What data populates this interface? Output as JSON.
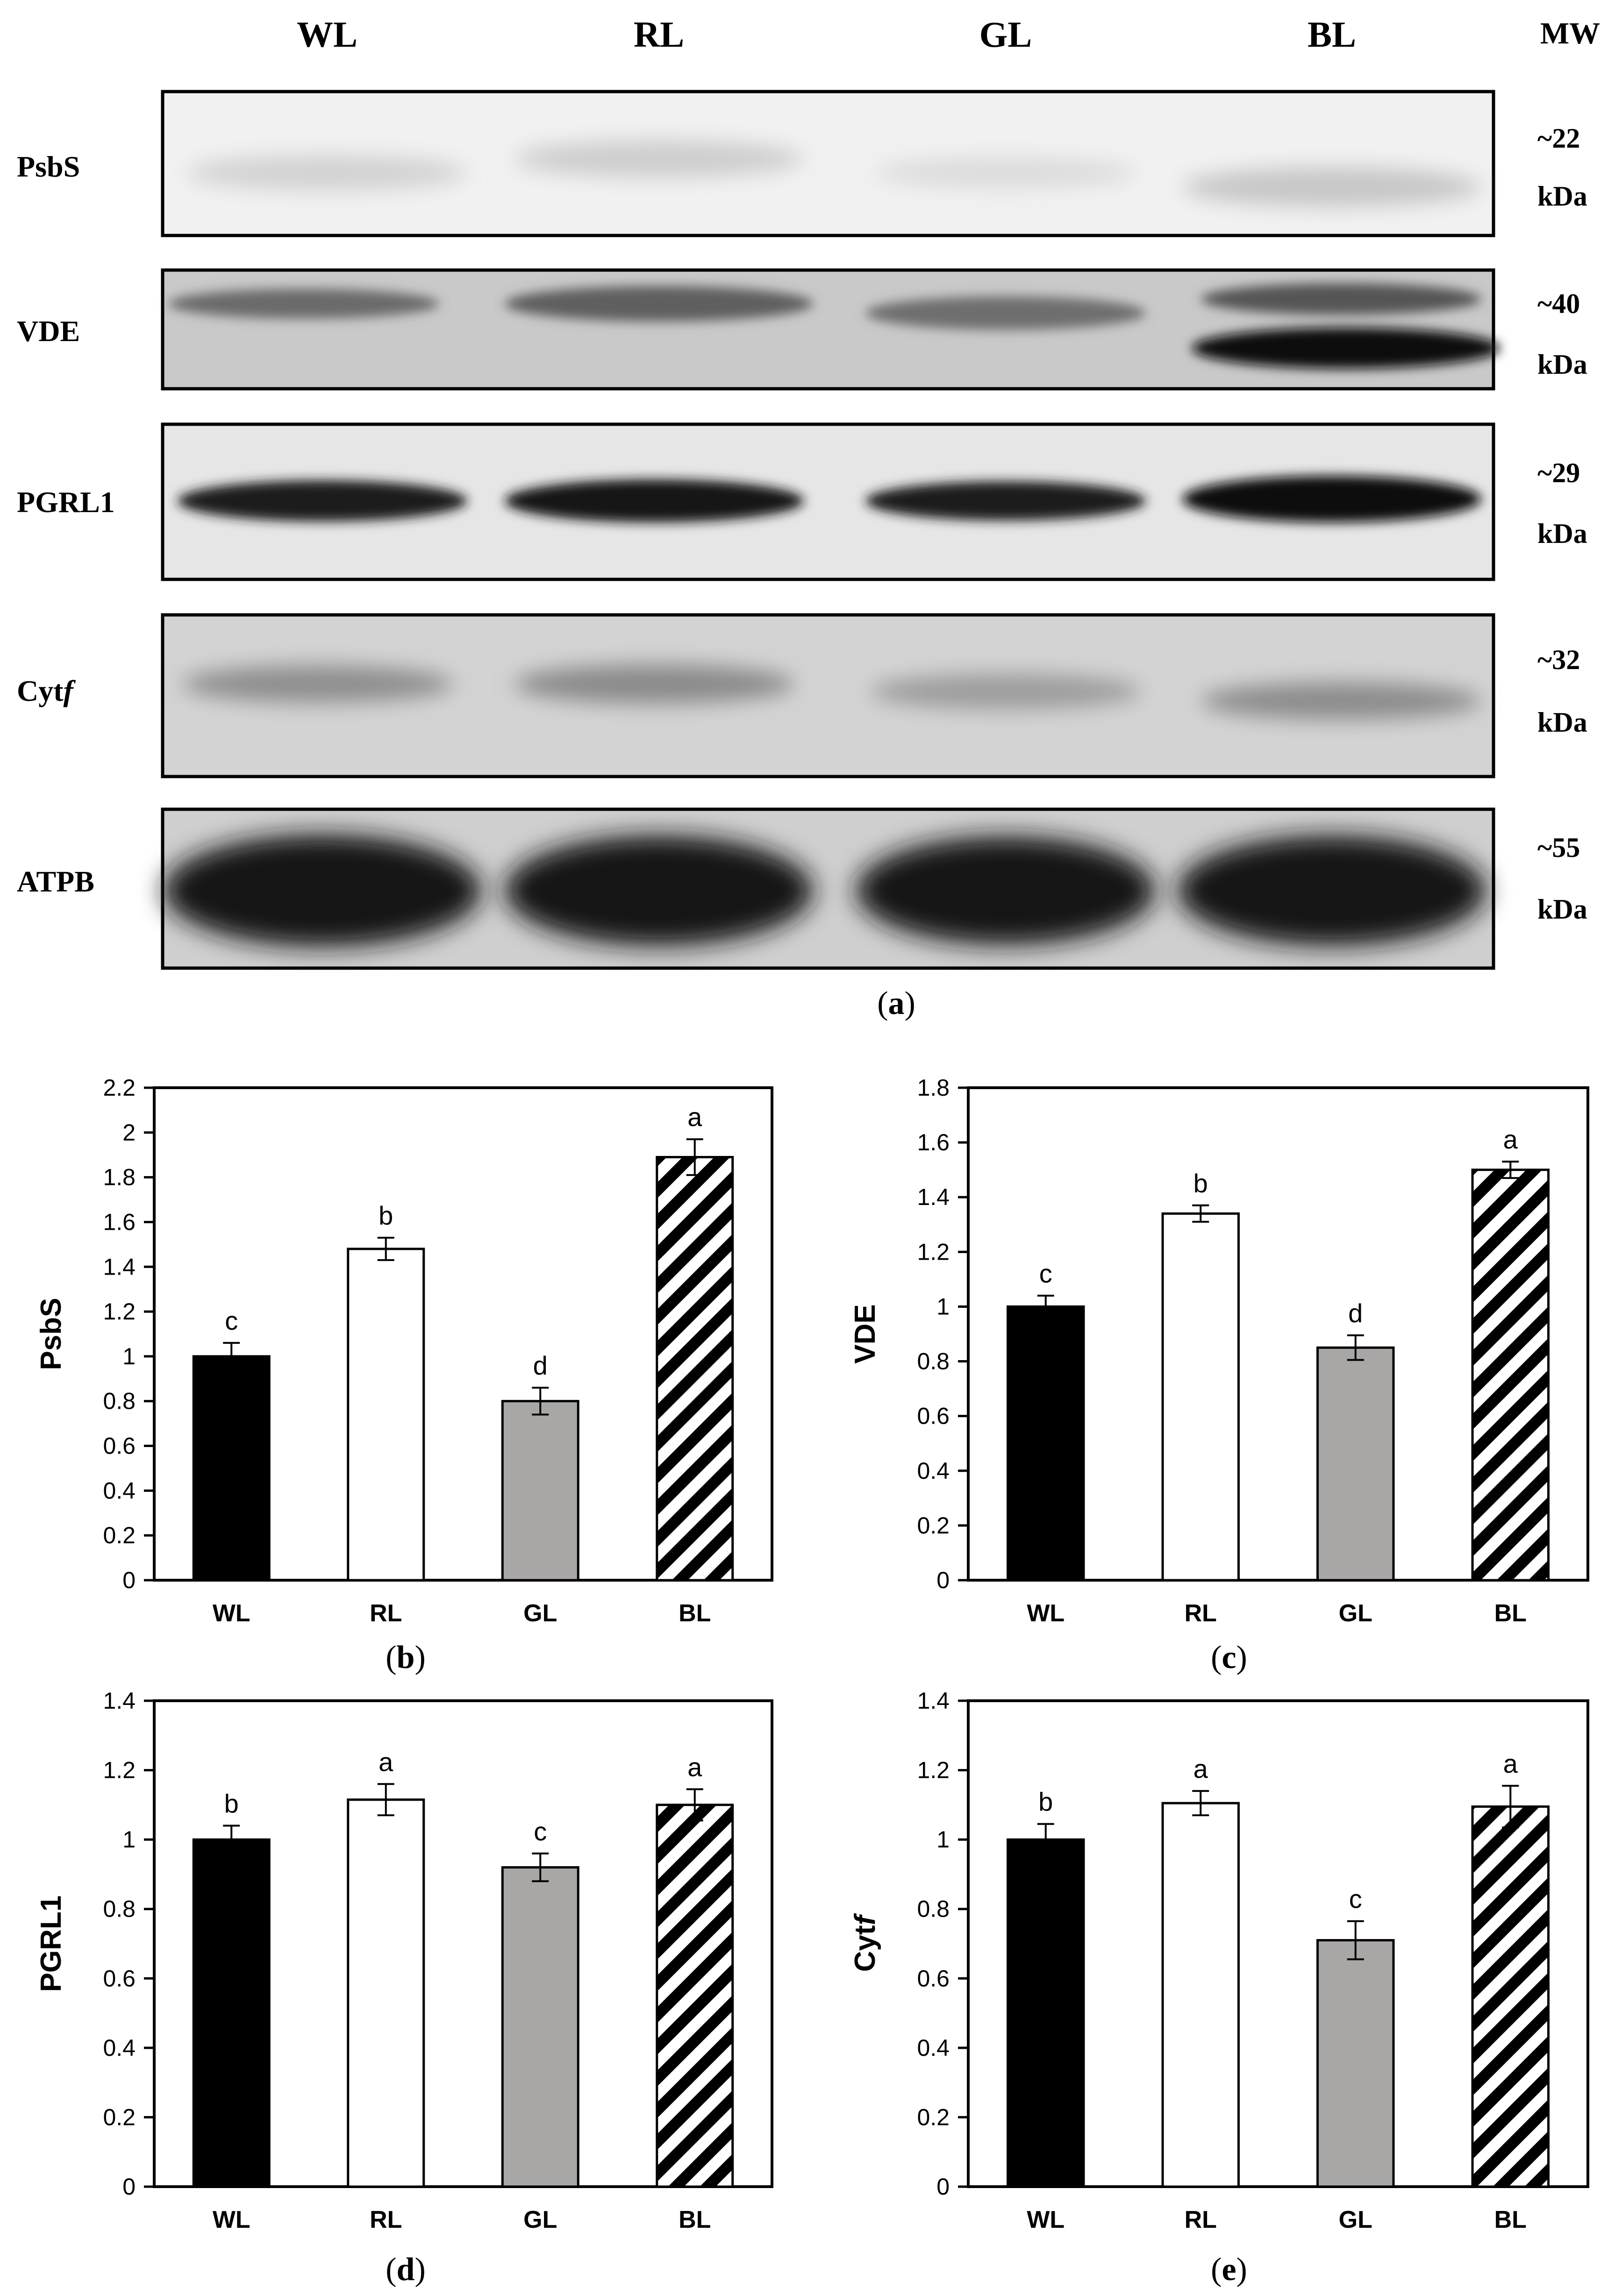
{
  "blot": {
    "lanes": [
      "WL",
      "RL",
      "GL",
      "BL"
    ],
    "mw_header": "MW",
    "caption_letter": "a",
    "rows": [
      {
        "label": "PsbS",
        "mw": "~22",
        "unit": "kDa"
      },
      {
        "label": "VDE",
        "mw": "~40",
        "unit": "kDa"
      },
      {
        "label": "PGRL1",
        "mw": "~29",
        "unit": "kDa"
      },
      {
        "label_main": "Cyt",
        "label_italic": "f",
        "mw": "~32",
        "unit": "kDa"
      },
      {
        "label": "ATPB",
        "mw": "~55",
        "unit": "kDa"
      }
    ]
  },
  "colors": {
    "black_bar": "#000000",
    "white_bar": "#ffffff",
    "gray_bar": "#a9a6a6",
    "hatch": "#000000"
  },
  "chart_data": [
    {
      "panel": "b",
      "type": "bar",
      "categories": [
        "WL",
        "RL",
        "GL",
        "BL"
      ],
      "values": [
        1.0,
        1.48,
        0.8,
        1.89
      ],
      "errors": [
        0.06,
        0.05,
        0.06,
        0.08
      ],
      "letters": [
        "c",
        "b",
        "d",
        "a"
      ],
      "ylabel": "PsbS",
      "ylabel_italic": "",
      "xlabel": "",
      "ylim": [
        0,
        2.2
      ],
      "yticks": [
        "0",
        "0.2",
        "0.4",
        "0.6",
        "0.8",
        "1",
        "1.2",
        "1.4",
        "1.6",
        "1.8",
        "2",
        "2.2"
      ],
      "grid": false
    },
    {
      "panel": "c",
      "type": "bar",
      "categories": [
        "WL",
        "RL",
        "GL",
        "BL"
      ],
      "values": [
        1.0,
        1.34,
        0.85,
        1.5
      ],
      "errors": [
        0.04,
        0.03,
        0.045,
        0.03
      ],
      "letters": [
        "c",
        "b",
        "d",
        "a"
      ],
      "ylabel": "VDE",
      "ylabel_italic": "",
      "xlabel": "",
      "ylim": [
        0,
        1.8
      ],
      "yticks": [
        "0",
        "0.2",
        "0.4",
        "0.6",
        "0.8",
        "1",
        "1.2",
        "1.4",
        "1.6",
        "1.8"
      ],
      "grid": false
    },
    {
      "panel": "d",
      "type": "bar",
      "categories": [
        "WL",
        "RL",
        "GL",
        "BL"
      ],
      "values": [
        1.0,
        1.115,
        0.92,
        1.1
      ],
      "errors": [
        0.04,
        0.045,
        0.04,
        0.045
      ],
      "letters": [
        "b",
        "a",
        "c",
        "a"
      ],
      "ylabel": "PGRL1",
      "ylabel_italic": "",
      "xlabel": "",
      "ylim": [
        0,
        1.4
      ],
      "yticks": [
        "0",
        "0.2",
        "0.4",
        "0.6",
        "0.8",
        "1",
        "1.2",
        "1.4"
      ],
      "grid": false
    },
    {
      "panel": "e",
      "type": "bar",
      "categories": [
        "WL",
        "RL",
        "GL",
        "BL"
      ],
      "values": [
        1.0,
        1.105,
        0.71,
        1.095
      ],
      "errors": [
        0.045,
        0.035,
        0.055,
        0.06
      ],
      "letters": [
        "b",
        "a",
        "c",
        "a"
      ],
      "ylabel": "Cyt",
      "ylabel_italic": "f",
      "xlabel": "",
      "ylim": [
        0,
        1.4
      ],
      "yticks": [
        "0",
        "0.2",
        "0.4",
        "0.6",
        "0.8",
        "1",
        "1.2",
        "1.4"
      ],
      "grid": false
    }
  ]
}
